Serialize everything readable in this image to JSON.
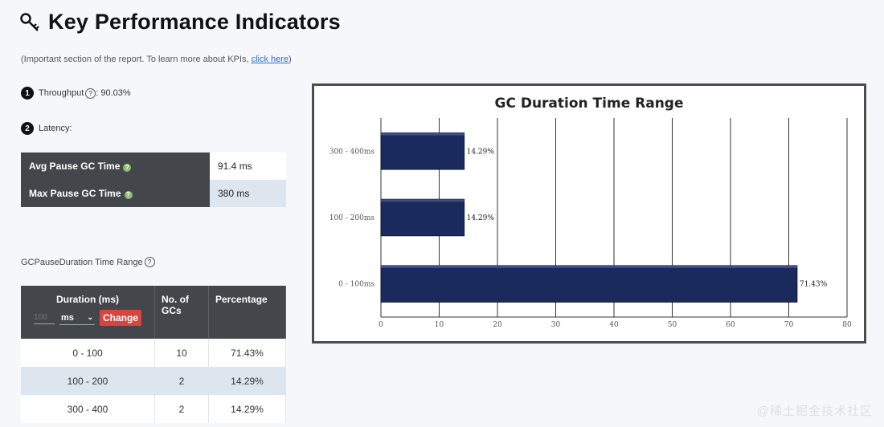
{
  "header": {
    "title": "Key Performance Indicators",
    "subtitle_prefix": "(Important section of the report. To learn more about KPIs, ",
    "subtitle_link": "click here",
    "subtitle_suffix": ")"
  },
  "kpis": {
    "throughput": {
      "number": "1",
      "label": "Throughput",
      "value": " : 90.03%"
    },
    "latency": {
      "number": "2",
      "label": "Latency:"
    }
  },
  "latency_table": [
    {
      "label": "Avg Pause GC Time",
      "value": "91.4 ms"
    },
    {
      "label": "Max Pause GC Time",
      "value": "380 ms"
    }
  ],
  "range_section": {
    "title": "GCPauseDuration Time Range",
    "headers": {
      "duration": "Duration (ms)",
      "count": "No. of GCs",
      "percentage": "Percentage"
    },
    "controls": {
      "input_placeholder": "100",
      "unit": "ms",
      "change_label": "Change"
    },
    "rows": [
      {
        "duration": "0 - 100",
        "count": "10",
        "percentage": "71.43%"
      },
      {
        "duration": "100 - 200",
        "count": "2",
        "percentage": "14.29%"
      },
      {
        "duration": "300 - 400",
        "count": "2",
        "percentage": "14.29%"
      }
    ]
  },
  "chart_data": {
    "type": "bar",
    "orientation": "horizontal",
    "title": "GC Duration Time Range",
    "categories": [
      "300 - 400ms",
      "100 - 200ms",
      "0 - 100ms"
    ],
    "values": [
      14.29,
      14.29,
      71.43
    ],
    "value_labels": [
      "14.29%",
      "14.29%",
      "71.43%"
    ],
    "xlim": [
      0,
      80
    ],
    "xticks": [
      0,
      10,
      20,
      30,
      40,
      50,
      60,
      70,
      80
    ],
    "grid": true,
    "colors": {
      "bar": "#1b2a5c"
    }
  },
  "watermark": "@稀土掘金技术社区"
}
